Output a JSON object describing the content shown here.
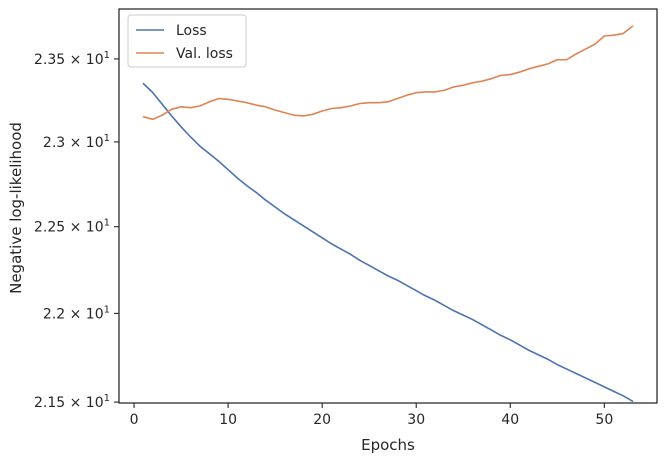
{
  "chart_data": {
    "type": "line",
    "title": "",
    "xlabel": "Epochs",
    "ylabel": "Negative log-likelihood",
    "xlim": [
      -1.6,
      55.6
    ],
    "ylim": [
      21.495,
      23.806
    ],
    "y_scale": "log",
    "grid": false,
    "legend_position": "top-left",
    "x_ticks": [
      0,
      10,
      20,
      30,
      40,
      50
    ],
    "x_tick_labels": [
      "0",
      "10",
      "20",
      "30",
      "40",
      "50"
    ],
    "y_ticks": [
      21.5,
      22.0,
      22.5,
      23.0,
      23.5
    ],
    "y_tick_mantissas": [
      "2.15",
      "2.2",
      "2.25",
      "2.3",
      "2.35"
    ],
    "y_tick_times": "×",
    "y_tick_base": "10",
    "y_tick_exponent": "1",
    "series": [
      {
        "name": "Loss",
        "color": "#4c72b0",
        "x": [
          1,
          2,
          3,
          4,
          5,
          6,
          7,
          8,
          9,
          10,
          11,
          12,
          13,
          14,
          15,
          16,
          17,
          18,
          19,
          20,
          21,
          22,
          23,
          24,
          25,
          26,
          27,
          28,
          29,
          30,
          31,
          32,
          33,
          34,
          35,
          36,
          37,
          38,
          39,
          40,
          41,
          42,
          43,
          44,
          45,
          46,
          47,
          48,
          49,
          50,
          51,
          52,
          53
        ],
        "values": [
          23.35,
          23.295,
          23.225,
          23.155,
          23.09,
          23.03,
          22.975,
          22.93,
          22.885,
          22.835,
          22.785,
          22.74,
          22.7,
          22.655,
          22.615,
          22.575,
          22.54,
          22.505,
          22.47,
          22.435,
          22.4,
          22.37,
          22.34,
          22.305,
          22.275,
          22.245,
          22.215,
          22.19,
          22.16,
          22.13,
          22.1,
          22.075,
          22.045,
          22.015,
          21.99,
          21.965,
          21.935,
          21.905,
          21.875,
          21.85,
          21.82,
          21.79,
          21.765,
          21.74,
          21.71,
          21.685,
          21.66,
          21.635,
          21.61,
          21.585,
          21.56,
          21.535,
          21.505
        ]
      },
      {
        "name": "Val. loss",
        "color": "#dd8452",
        "x": [
          1,
          2,
          3,
          4,
          5,
          6,
          7,
          8,
          9,
          10,
          11,
          12,
          13,
          14,
          15,
          16,
          17,
          18,
          19,
          20,
          21,
          22,
          23,
          24,
          25,
          26,
          27,
          28,
          29,
          30,
          31,
          32,
          33,
          34,
          35,
          36,
          37,
          38,
          39,
          40,
          41,
          42,
          43,
          44,
          45,
          46,
          47,
          48,
          49,
          50,
          51,
          52,
          53
        ],
        "values": [
          23.15,
          23.135,
          23.16,
          23.195,
          23.21,
          23.205,
          23.215,
          23.24,
          23.26,
          23.255,
          23.245,
          23.235,
          23.22,
          23.21,
          23.19,
          23.175,
          23.16,
          23.155,
          23.165,
          23.185,
          23.2,
          23.205,
          23.215,
          23.23,
          23.235,
          23.235,
          23.24,
          23.26,
          23.28,
          23.295,
          23.3,
          23.3,
          23.31,
          23.33,
          23.34,
          23.355,
          23.365,
          23.38,
          23.4,
          23.405,
          23.42,
          23.44,
          23.455,
          23.47,
          23.495,
          23.495,
          23.53,
          23.56,
          23.59,
          23.64,
          23.645,
          23.655,
          23.7
        ]
      }
    ]
  }
}
